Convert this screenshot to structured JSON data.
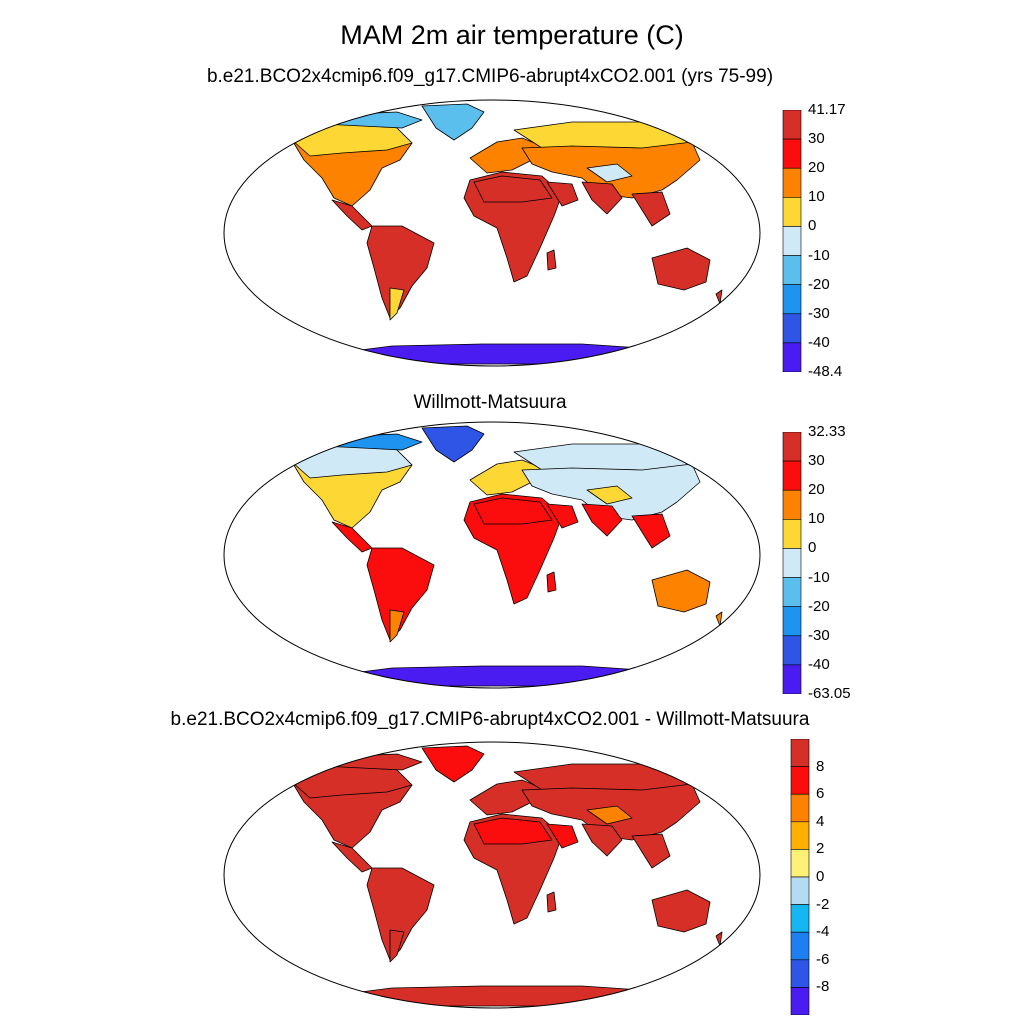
{
  "figure": {
    "title": "MAM 2m air temperature (C)"
  },
  "panels": [
    {
      "id": "model",
      "title": "b.e21.BCO2x4cmip6.f09_g17.CMIP6-abrupt4xCO2.001 (yrs 75-99)",
      "colorbar": {
        "colors": [
          "#d62f27",
          "#fb0d0d",
          "#fd8200",
          "#fdd835",
          "#cfe9f6",
          "#5bbfee",
          "#1e94f0",
          "#2e55e6",
          "#4b1cf2"
        ],
        "labels": [
          "41.17",
          "30",
          "20",
          "10",
          "0",
          "-10",
          "-20",
          "-30",
          "-40",
          "-48.4"
        ]
      },
      "land_colors": {
        "arctic": "#5bbfee",
        "high": "#fd8200",
        "boreal": "#fdd835",
        "mid": "#fd8200",
        "tropic": "#d62f27",
        "sahara": "#d62f27",
        "aus": "#d62f27",
        "antarctic": "#4b1cf2",
        "patagonia": "#fdd835",
        "tibet": "#cfe9f6",
        "eurasia_n": "#fdd835",
        "ice": "#5bbfee"
      }
    },
    {
      "id": "obs",
      "title": "Willmott-Matsuura",
      "colorbar": {
        "colors": [
          "#d62f27",
          "#fb0d0d",
          "#fd8200",
          "#fdd835",
          "#cfe9f6",
          "#5bbfee",
          "#1e94f0",
          "#2e55e6",
          "#4b1cf2"
        ],
        "labels": [
          "32.33",
          "30",
          "20",
          "10",
          "0",
          "-10",
          "-20",
          "-30",
          "-40",
          "-63.05"
        ]
      },
      "land_colors": {
        "arctic": "#1e94f0",
        "high": "#cfe9f6",
        "boreal": "#cfe9f6",
        "mid": "#fdd835",
        "tropic": "#fb0d0d",
        "sahara": "#fb0d0d",
        "aus": "#fd8200",
        "antarctic": "#4b1cf2",
        "patagonia": "#fd8200",
        "tibet": "#fdd835",
        "eurasia_n": "#cfe9f6",
        "ice": "#2e55e6"
      }
    },
    {
      "id": "diff",
      "title": "b.e21.BCO2x4cmip6.f09_g17.CMIP6-abrupt4xCO2.001 - Willmott-Matsuura",
      "colorbar": {
        "colors": [
          "#d62f27",
          "#fb0d0d",
          "#fd8200",
          "#ffb000",
          "#fff176",
          "#b3dcf4",
          "#15b6f2",
          "#1e7ff0",
          "#2e55e6",
          "#4b1cf2"
        ],
        "labels": [
          "8",
          "6",
          "4",
          "2",
          "0",
          "-2",
          "-4",
          "-6",
          "-8"
        ]
      },
      "land_colors": {
        "arctic": "#d62f27",
        "high": "#d62f27",
        "boreal": "#d62f27",
        "mid": "#d62f27",
        "tropic": "#d62f27",
        "sahara": "#fb0d0d",
        "aus": "#d62f27",
        "antarctic": "#d62f27",
        "patagonia": "#d62f27",
        "tibet": "#fd8200",
        "eurasia_n": "#d62f27",
        "ice": "#fb0d0d"
      }
    }
  ]
}
